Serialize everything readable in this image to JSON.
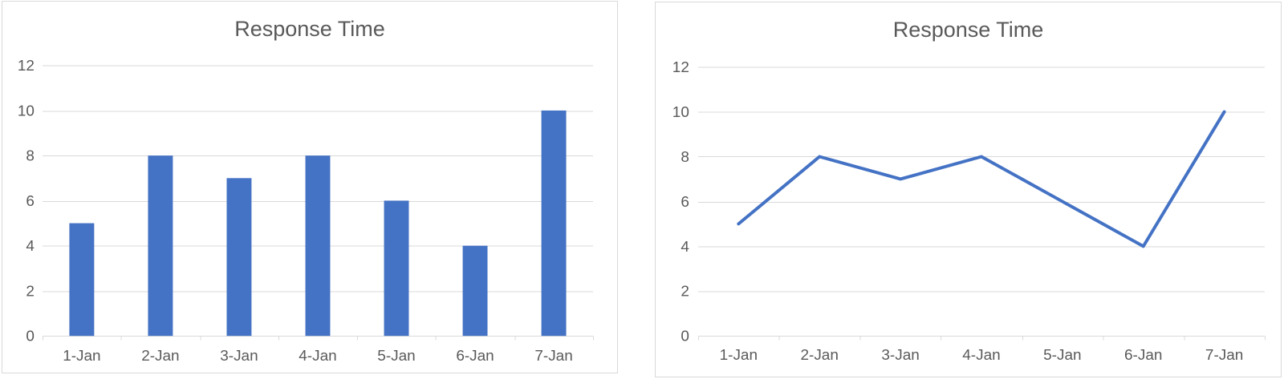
{
  "page": {
    "background": "#ffffff"
  },
  "style": {
    "accent": "#4472C4",
    "gridline": "#D9D9D9",
    "axis_line": "#D9D9D9",
    "tick_mark": "#D9D9D9",
    "tick_label_color": "#595959",
    "title_color": "#595959",
    "panel_border": "#D9D9D9",
    "panel_background": "#FFFFFF"
  },
  "chart_data": [
    {
      "type": "bar",
      "title": "Response Time",
      "categories": [
        "1-Jan",
        "2-Jan",
        "3-Jan",
        "4-Jan",
        "5-Jan",
        "6-Jan",
        "7-Jan"
      ],
      "values": [
        5,
        8,
        7,
        8,
        6,
        4,
        10
      ],
      "xlabel": "",
      "ylabel": "",
      "ylim": [
        0,
        12
      ],
      "yticks": [
        0,
        2,
        4,
        6,
        8,
        10,
        12
      ],
      "grid": true,
      "legend": "none",
      "bar_color": "#4472C4"
    },
    {
      "type": "line",
      "title": "Response Time",
      "categories": [
        "1-Jan",
        "2-Jan",
        "3-Jan",
        "4-Jan",
        "5-Jan",
        "6-Jan",
        "7-Jan"
      ],
      "values": [
        5,
        8,
        7,
        8,
        6,
        4,
        10
      ],
      "xlabel": "",
      "ylabel": "",
      "ylim": [
        0,
        12
      ],
      "yticks": [
        0,
        2,
        4,
        6,
        8,
        10,
        12
      ],
      "grid": true,
      "legend": "none",
      "line_color": "#4472C4"
    }
  ]
}
